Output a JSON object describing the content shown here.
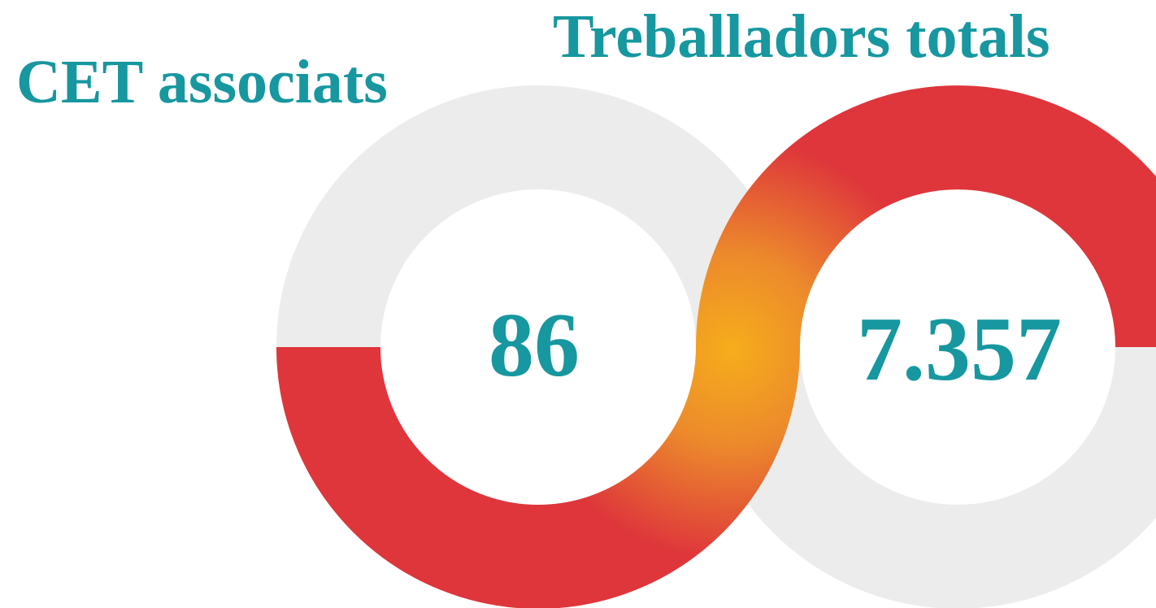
{
  "left": {
    "title": "CET associats",
    "number": "86"
  },
  "right": {
    "title": "Treballadors totals",
    "number": "7.357"
  }
}
